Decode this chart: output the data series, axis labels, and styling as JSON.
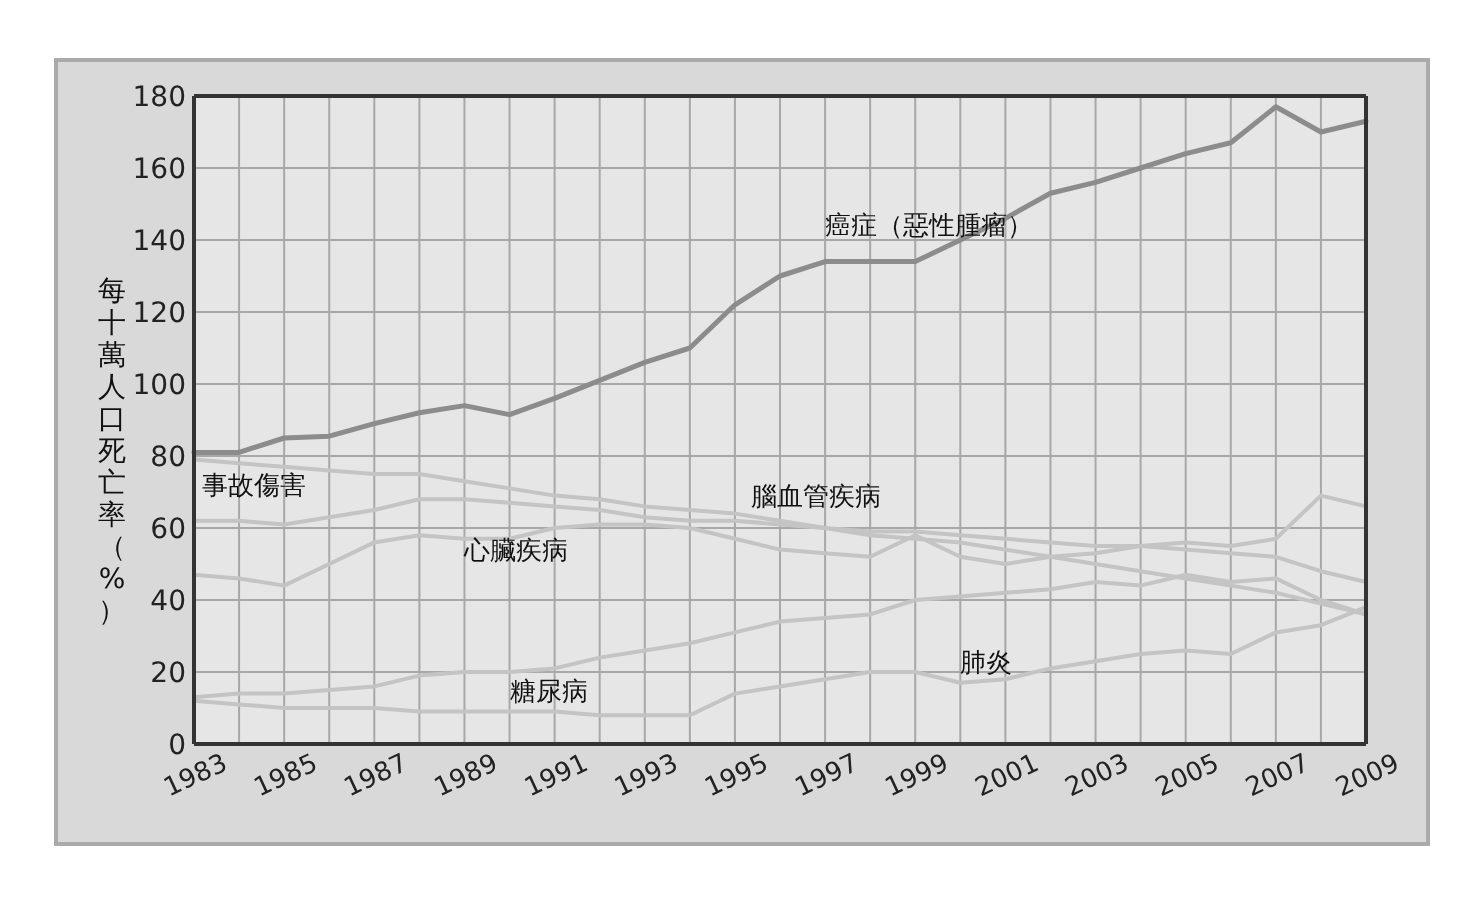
{
  "chart_data": {
    "type": "line",
    "ylabel": "每十萬人口死亡率（%）",
    "x": [
      1983,
      1984,
      1985,
      1986,
      1987,
      1988,
      1989,
      1990,
      1991,
      1992,
      1993,
      1994,
      1995,
      1996,
      1997,
      1998,
      1999,
      2000,
      2001,
      2002,
      2003,
      2004,
      2005,
      2006,
      2007,
      2008,
      2009
    ],
    "series": [
      {
        "name": "癌症（惡性腫瘤）",
        "color": "#8c8c8c",
        "values": [
          81,
          81,
          85,
          85.5,
          89,
          92,
          94,
          91.5,
          96,
          101,
          106,
          110,
          122,
          130,
          134,
          134,
          134,
          140,
          146,
          153,
          156,
          160,
          164,
          167,
          177,
          170,
          173
        ]
      },
      {
        "name": "事故傷害",
        "color": "#c4c4c4",
        "values": [
          79,
          78,
          77,
          76,
          75,
          75,
          73,
          71,
          69,
          68,
          66,
          65,
          64,
          62,
          60,
          58,
          57,
          56,
          54,
          52,
          50,
          48,
          46,
          44,
          42,
          39,
          36
        ]
      },
      {
        "name": "腦血管疾病",
        "color": "#c4c4c4",
        "values": [
          62,
          62,
          61,
          63,
          65,
          68,
          68,
          67,
          66,
          65,
          63,
          62,
          62,
          61,
          60,
          59,
          59,
          58,
          57,
          56,
          55,
          55,
          54,
          53,
          52,
          48,
          45
        ]
      },
      {
        "name": "心臟疾病",
        "color": "#c4c4c4",
        "values": [
          47,
          46,
          44,
          50,
          56,
          58,
          57,
          57,
          60,
          61,
          61,
          60,
          57,
          54,
          53,
          52,
          58,
          52,
          50,
          52,
          53,
          55,
          56,
          55,
          57,
          69,
          66
        ]
      },
      {
        "name": "糖尿病",
        "color": "#c4c4c4",
        "values": [
          13,
          14,
          14,
          15,
          16,
          19,
          20,
          20,
          21,
          24,
          26,
          28,
          31,
          34,
          35,
          36,
          40,
          41,
          42,
          43,
          45,
          44,
          47,
          45,
          46,
          40,
          36
        ]
      },
      {
        "name": "肺炎",
        "color": "#c4c4c4",
        "values": [
          12,
          11,
          10,
          10,
          10,
          9,
          9,
          9,
          9,
          8,
          8,
          8,
          14,
          16,
          18,
          20,
          20,
          17,
          18,
          21,
          23,
          25,
          26,
          25,
          31,
          33,
          38
        ]
      }
    ],
    "xlim": [
      1983,
      2009
    ],
    "ylim": [
      0,
      180
    ],
    "xticks": [
      1983,
      {
        "value": 1984,
        "label": null
      },
      1985,
      {
        "value": 1986,
        "label": null
      },
      1987,
      {
        "value": 1988,
        "label": null
      },
      1989,
      {
        "value": 1990,
        "label": null
      },
      1991,
      {
        "value": 1992,
        "label": null
      },
      1993,
      {
        "value": 1994,
        "label": null
      },
      1995,
      {
        "value": 1996,
        "label": null
      },
      1997,
      {
        "value": 1998,
        "label": null
      },
      1999,
      {
        "value": 2000,
        "label": null
      },
      2001,
      {
        "value": 2002,
        "label": null
      },
      2003,
      {
        "value": 2004,
        "label": null
      },
      2005,
      {
        "value": 2006,
        "label": null
      },
      2007,
      {
        "value": 2008,
        "label": null
      },
      2009
    ],
    "yticks": [
      0,
      20,
      40,
      60,
      80,
      100,
      120,
      140,
      160,
      180
    ],
    "grid": true,
    "marker": "none",
    "line_style": "solid"
  }
}
